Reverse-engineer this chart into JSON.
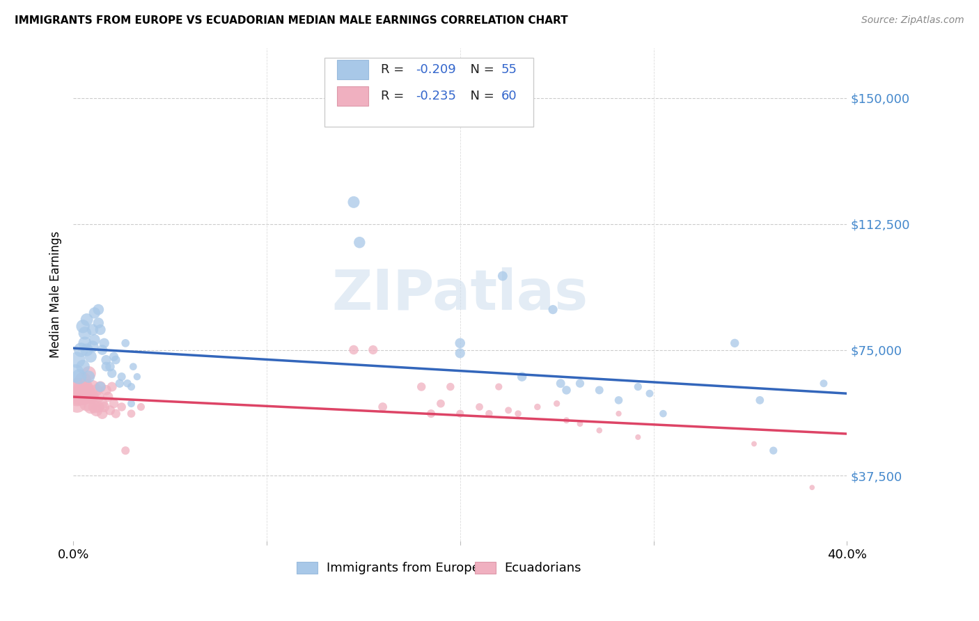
{
  "title": "IMMIGRANTS FROM EUROPE VS ECUADORIAN MEDIAN MALE EARNINGS CORRELATION CHART",
  "source": "Source: ZipAtlas.com",
  "ylabel": "Median Male Earnings",
  "yticks": [
    37500,
    75000,
    112500,
    150000
  ],
  "ytick_labels": [
    "$37,500",
    "$75,000",
    "$112,500",
    "$150,000"
  ],
  "xlim": [
    0.0,
    0.4
  ],
  "ylim": [
    18000,
    165000
  ],
  "blue_color": "#a8c8e8",
  "pink_color": "#f0b0c0",
  "blue_line_color": "#3366bb",
  "pink_line_color": "#dd4466",
  "watermark": "ZIPatlas",
  "legend_label_blue": "Immigrants from Europe",
  "legend_label_pink": "Ecuadorians",
  "blue_points": [
    [
      0.001,
      68000
    ],
    [
      0.002,
      72000
    ],
    [
      0.003,
      67000
    ],
    [
      0.004,
      75000
    ],
    [
      0.005,
      70000
    ],
    [
      0.005,
      82000
    ],
    [
      0.006,
      77000
    ],
    [
      0.006,
      80000
    ],
    [
      0.007,
      75000
    ],
    [
      0.007,
      84000
    ],
    [
      0.008,
      67000
    ],
    [
      0.009,
      73000
    ],
    [
      0.01,
      76000
    ],
    [
      0.01,
      81000
    ],
    [
      0.011,
      86000
    ],
    [
      0.011,
      78000
    ],
    [
      0.013,
      87000
    ],
    [
      0.013,
      83000
    ],
    [
      0.014,
      81000
    ],
    [
      0.014,
      64000
    ],
    [
      0.015,
      75000
    ],
    [
      0.016,
      77000
    ],
    [
      0.017,
      72000
    ],
    [
      0.017,
      70000
    ],
    [
      0.019,
      70000
    ],
    [
      0.02,
      68000
    ],
    [
      0.021,
      73000
    ],
    [
      0.022,
      72000
    ],
    [
      0.024,
      65000
    ],
    [
      0.025,
      67000
    ],
    [
      0.027,
      77000
    ],
    [
      0.028,
      65000
    ],
    [
      0.03,
      64000
    ],
    [
      0.03,
      59000
    ],
    [
      0.031,
      70000
    ],
    [
      0.033,
      67000
    ],
    [
      0.145,
      119000
    ],
    [
      0.148,
      107000
    ],
    [
      0.2,
      77000
    ],
    [
      0.2,
      74000
    ],
    [
      0.222,
      97000
    ],
    [
      0.232,
      67000
    ],
    [
      0.248,
      87000
    ],
    [
      0.252,
      65000
    ],
    [
      0.255,
      63000
    ],
    [
      0.262,
      65000
    ],
    [
      0.272,
      63000
    ],
    [
      0.282,
      60000
    ],
    [
      0.292,
      64000
    ],
    [
      0.298,
      62000
    ],
    [
      0.305,
      56000
    ],
    [
      0.342,
      77000
    ],
    [
      0.355,
      60000
    ],
    [
      0.362,
      45000
    ],
    [
      0.388,
      65000
    ]
  ],
  "pink_points": [
    [
      0.001,
      63000
    ],
    [
      0.002,
      61000
    ],
    [
      0.002,
      59000
    ],
    [
      0.003,
      64000
    ],
    [
      0.003,
      61000
    ],
    [
      0.004,
      63000
    ],
    [
      0.004,
      62000
    ],
    [
      0.005,
      61000
    ],
    [
      0.005,
      66000
    ],
    [
      0.006,
      64000
    ],
    [
      0.006,
      61000
    ],
    [
      0.007,
      63000
    ],
    [
      0.007,
      59000
    ],
    [
      0.008,
      62000
    ],
    [
      0.008,
      68000
    ],
    [
      0.009,
      61000
    ],
    [
      0.009,
      58000
    ],
    [
      0.01,
      64000
    ],
    [
      0.01,
      61000
    ],
    [
      0.011,
      58000
    ],
    [
      0.012,
      57000
    ],
    [
      0.012,
      63000
    ],
    [
      0.013,
      61000
    ],
    [
      0.013,
      58000
    ],
    [
      0.014,
      64000
    ],
    [
      0.015,
      59000
    ],
    [
      0.015,
      56000
    ],
    [
      0.016,
      58000
    ],
    [
      0.017,
      63000
    ],
    [
      0.018,
      61000
    ],
    [
      0.019,
      57000
    ],
    [
      0.02,
      64000
    ],
    [
      0.021,
      59000
    ],
    [
      0.022,
      56000
    ],
    [
      0.025,
      58000
    ],
    [
      0.027,
      45000
    ],
    [
      0.03,
      56000
    ],
    [
      0.035,
      58000
    ],
    [
      0.145,
      75000
    ],
    [
      0.155,
      75000
    ],
    [
      0.16,
      58000
    ],
    [
      0.18,
      64000
    ],
    [
      0.185,
      56000
    ],
    [
      0.19,
      59000
    ],
    [
      0.195,
      64000
    ],
    [
      0.2,
      56000
    ],
    [
      0.21,
      58000
    ],
    [
      0.215,
      56000
    ],
    [
      0.22,
      64000
    ],
    [
      0.225,
      57000
    ],
    [
      0.23,
      56000
    ],
    [
      0.24,
      58000
    ],
    [
      0.25,
      59000
    ],
    [
      0.255,
      54000
    ],
    [
      0.262,
      53000
    ],
    [
      0.272,
      51000
    ],
    [
      0.282,
      56000
    ],
    [
      0.292,
      49000
    ],
    [
      0.352,
      47000
    ],
    [
      0.382,
      34000
    ]
  ],
  "blue_point_sizes": [
    350,
    280,
    240,
    220,
    200,
    195,
    185,
    180,
    175,
    168,
    160,
    155,
    148,
    142,
    138,
    132,
    128,
    124,
    120,
    116,
    112,
    108,
    104,
    100,
    96,
    92,
    88,
    84,
    80,
    76,
    72,
    68,
    64,
    62,
    60,
    56,
    150,
    140,
    110,
    105,
    100,
    95,
    90,
    86,
    82,
    78,
    74,
    70,
    66,
    62,
    58,
    80,
    72,
    66,
    62
  ],
  "pink_point_sizes": [
    600,
    380,
    360,
    340,
    320,
    310,
    300,
    290,
    280,
    270,
    260,
    250,
    240,
    230,
    220,
    210,
    200,
    190,
    180,
    170,
    160,
    155,
    148,
    142,
    138,
    132,
    126,
    120,
    115,
    110,
    105,
    100,
    95,
    90,
    82,
    75,
    70,
    65,
    95,
    90,
    85,
    80,
    75,
    72,
    68,
    64,
    60,
    57,
    54,
    51,
    48,
    46,
    44,
    42,
    40,
    38,
    36,
    34,
    32,
    30
  ]
}
